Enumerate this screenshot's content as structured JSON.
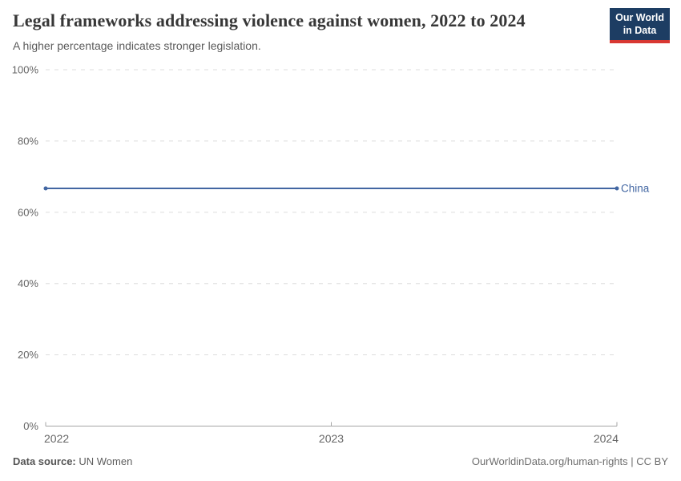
{
  "header": {
    "title": "Legal frameworks addressing violence against women, 2022 to 2024",
    "subtitle": "A higher percentage indicates stronger legislation.",
    "logo": {
      "line1": "Our World",
      "line2": "in Data",
      "bg_color": "#1d3d63",
      "accent_color": "#d83732"
    }
  },
  "chart_data": {
    "type": "line",
    "title": "Legal frameworks addressing violence against women, 2022 to 2024",
    "x": [
      2022,
      2023,
      2024
    ],
    "xticks": [
      2022,
      2023,
      2024
    ],
    "series": [
      {
        "name": "China",
        "values": [
          66.7,
          66.7,
          66.7
        ],
        "color": "#4266a2"
      }
    ],
    "ylim": [
      0,
      100
    ],
    "yticks": [
      0,
      20,
      40,
      60,
      80,
      100
    ],
    "ytick_suffix": "%",
    "grid": true,
    "gridline_color": "#dddddd",
    "axis_color": "#a5a5a5",
    "tick_label_color": "#666666",
    "legend_position": "right-of-line-end"
  },
  "footer": {
    "source_label": "Data source:",
    "source_value": "UN Women",
    "attribution": "OurWorldinData.org/human-rights | CC BY"
  }
}
